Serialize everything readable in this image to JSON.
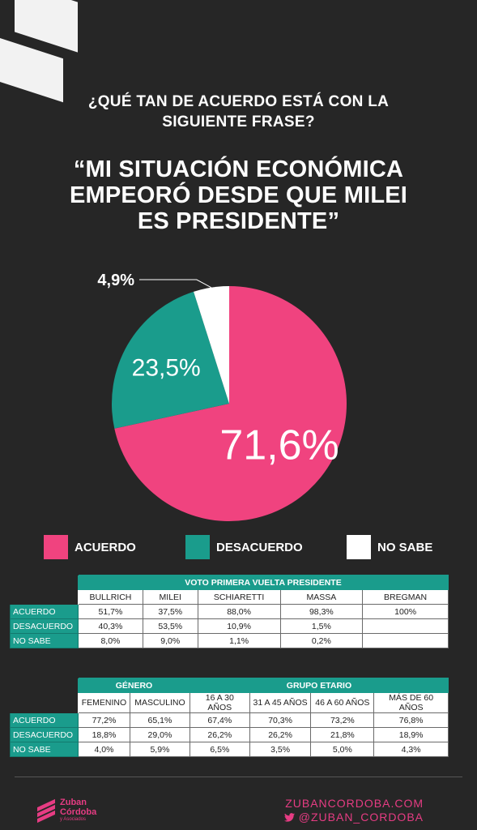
{
  "question": [
    "¿QUÉ TAN DE ACUERDO ESTÁ CON LA",
    "SIGUIENTE FRASE?"
  ],
  "quote": [
    "“MI SITUACIÓN ECONÓMICA",
    "EMPEORÓ DESDE QUE MILEI",
    "ES PRESIDENTE”"
  ],
  "colors": {
    "acuerdo": "#f0437f",
    "desacuerdo": "#1a9c8c",
    "no_sabe": "#ffffff",
    "teal_header": "#1a9c8c",
    "brand": "#e63c83"
  },
  "chart_data": {
    "type": "pie",
    "slices": [
      {
        "label": "ACUERDO",
        "value": 71.6,
        "display": "71,6%",
        "color": "#f0437f"
      },
      {
        "label": "DESACUERDO",
        "value": 23.5,
        "display": "23,5%",
        "color": "#1a9c8c"
      },
      {
        "label": "NO SABE",
        "value": 4.9,
        "display": "4,9%",
        "color": "#ffffff"
      }
    ]
  },
  "legend": [
    {
      "label": "ACUERDO",
      "color": "#f0437f"
    },
    {
      "label": "DESACUERDO",
      "color": "#1a9c8c"
    },
    {
      "label": "NO SABE",
      "color": "#ffffff"
    }
  ],
  "table_vote": {
    "group_header": "VOTO PRIMERA VUELTA PRESIDENTE",
    "columns": [
      "BULLRICH",
      "MILEI",
      "SCHIARETTI",
      "MASSA",
      "BREGMAN"
    ],
    "rows": [
      {
        "label": "ACUERDO",
        "values": [
          "51,7%",
          "37,5%",
          "88,0%",
          "98,3%",
          "100%"
        ]
      },
      {
        "label": "DESACUERDO",
        "values": [
          "40,3%",
          "53,5%",
          "10,9%",
          "1,5%",
          ""
        ]
      },
      {
        "label": "NO SABE",
        "values": [
          "8,0%",
          "9,0%",
          "1,1%",
          "0,2%",
          ""
        ]
      }
    ]
  },
  "table_demo": {
    "group_headers": [
      "GÉNERO",
      "GRUPO ETARIO"
    ],
    "columns": [
      "FEMENINO",
      "MASCULINO",
      "16 A 30 AÑOS",
      "31 A 45 AÑOS",
      "46 A 60 AÑOS",
      "MÁS DE 60 AÑOS"
    ],
    "rows": [
      {
        "label": "ACUERDO",
        "values": [
          "77,2%",
          "65,1%",
          "67,4%",
          "70,3%",
          "73,2%",
          "76,8%"
        ]
      },
      {
        "label": "DESACUERDO",
        "values": [
          "18,8%",
          "29,0%",
          "26,2%",
          "26,2%",
          "21,8%",
          "18,9%"
        ]
      },
      {
        "label": "NO SABE",
        "values": [
          "4,0%",
          "5,9%",
          "6,5%",
          "3,5%",
          "5,0%",
          "4,3%"
        ]
      }
    ]
  },
  "footer": {
    "brand_name": [
      "Zuban",
      "Córdoba"
    ],
    "brand_sub": "y Asociados",
    "website": "ZUBANCORDOBA.COM",
    "twitter": "@ZUBAN_CORDOBA",
    "twitter_icon": "twitter-bird-icon"
  }
}
